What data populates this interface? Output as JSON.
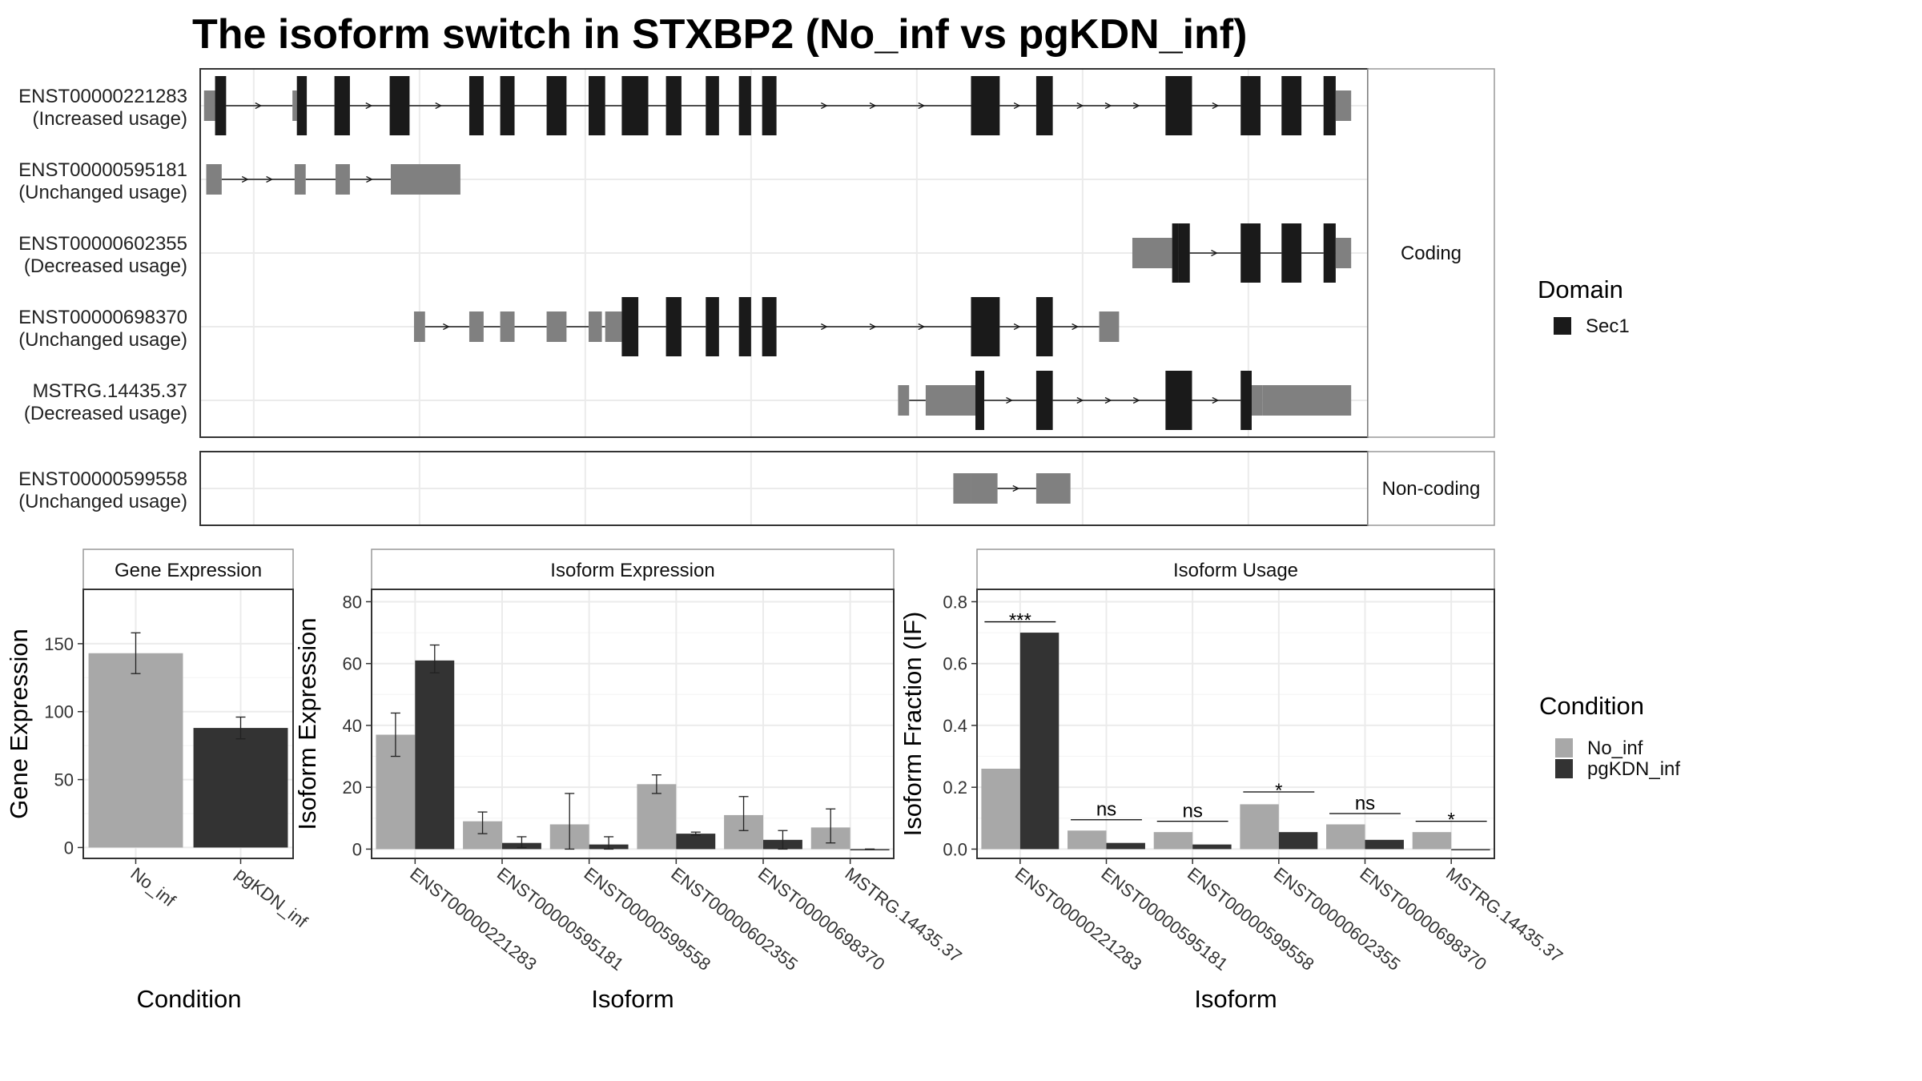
{
  "title": "The isoform switch in STXBP2 (No_inf vs pgKDN_inf)",
  "colors": {
    "cds": "#1a1a1a",
    "utr": "#808080",
    "no_inf": "#a8a8a8",
    "pgkdn": "#333333"
  },
  "structure": {
    "x_range": [
      0,
      1000
    ],
    "grid_x": [
      47,
      197,
      347,
      497,
      647,
      797,
      947
    ],
    "panels": [
      {
        "label": "Coding",
        "transcripts": [
          {
            "id": "ENST00000221283",
            "usage": "(Increased usage)",
            "exons": [
              [
                2,
                12,
                "u"
              ],
              [
                12,
                22,
                "c"
              ],
              [
                82,
                86,
                "u"
              ],
              [
                86,
                95,
                "c"
              ],
              [
                120,
                134,
                "c"
              ],
              [
                170,
                188,
                "c"
              ],
              [
                242,
                255,
                "c"
              ],
              [
                270,
                283,
                "c"
              ],
              [
                312,
                330,
                "c"
              ],
              [
                350,
                365,
                "c"
              ],
              [
                380,
                404,
                "c"
              ],
              [
                420,
                434,
                "c"
              ],
              [
                456,
                468,
                "c"
              ],
              [
                486,
                497,
                "c"
              ],
              [
                507,
                520,
                "c"
              ],
              [
                696,
                722,
                "c"
              ],
              [
                755,
                770,
                "c"
              ],
              [
                872,
                896,
                "c"
              ],
              [
                940,
                958,
                "c"
              ],
              [
                977,
                995,
                "c"
              ],
              [
                1015,
                1026,
                "c"
              ],
              [
                1026,
                1040,
                "u"
              ]
            ]
          },
          {
            "id": "ENST00000595181",
            "usage": "(Unchanged usage)",
            "exons": [
              [
                4,
                18,
                "u"
              ],
              [
                84,
                94,
                "u"
              ],
              [
                121,
                134,
                "u"
              ],
              [
                171,
                234,
                "u"
              ]
            ]
          },
          {
            "id": "ENST00000602355",
            "usage": "(Decreased usage)",
            "exons": [
              [
                842,
                878,
                "u"
              ],
              [
                878,
                884,
                "c"
              ],
              [
                884,
                894,
                "c"
              ],
              [
                940,
                958,
                "c"
              ],
              [
                977,
                995,
                "c"
              ],
              [
                1015,
                1026,
                "c"
              ],
              [
                1026,
                1040,
                "u"
              ]
            ]
          },
          {
            "id": "ENST00000698370",
            "usage": "(Unchanged usage)",
            "exons": [
              [
                192,
                202,
                "u"
              ],
              [
                242,
                255,
                "u"
              ],
              [
                270,
                283,
                "u"
              ],
              [
                312,
                330,
                "u"
              ],
              [
                350,
                362,
                "u"
              ],
              [
                365,
                380,
                "u"
              ],
              [
                380,
                395,
                "c"
              ],
              [
                420,
                434,
                "c"
              ],
              [
                456,
                468,
                "c"
              ],
              [
                486,
                497,
                "c"
              ],
              [
                507,
                520,
                "c"
              ],
              [
                696,
                722,
                "c"
              ],
              [
                755,
                770,
                "c"
              ],
              [
                812,
                830,
                "u"
              ]
            ]
          },
          {
            "id": "MSTRG.14435.37",
            "usage": "(Decreased usage)",
            "exons": [
              [
                630,
                640,
                "u"
              ],
              [
                655,
                700,
                "u"
              ],
              [
                700,
                708,
                "c"
              ],
              [
                755,
                770,
                "c"
              ],
              [
                872,
                896,
                "c"
              ],
              [
                940,
                950,
                "c"
              ],
              [
                950,
                960,
                "u"
              ],
              [
                960,
                1040,
                "u"
              ]
            ]
          }
        ]
      },
      {
        "label": "Non-coding",
        "transcripts": [
          {
            "id": "ENST00000599558",
            "usage": "(Unchanged usage)",
            "exons": [
              [
                680,
                696,
                "u"
              ],
              [
                696,
                720,
                "u"
              ],
              [
                755,
                786,
                "u"
              ]
            ]
          }
        ]
      }
    ]
  },
  "legend_domain": {
    "title": "Domain",
    "items": [
      "Sec1"
    ]
  },
  "legend_condition": {
    "title": "Condition",
    "items": [
      "No_inf",
      "pgKDN_inf"
    ]
  },
  "chart_data": [
    {
      "type": "bar",
      "title": "Gene Expression",
      "xlabel": "Condition",
      "ylabel": "Gene Expression",
      "categories": [
        "No_inf",
        "pgKDN_inf"
      ],
      "values": [
        143,
        88
      ],
      "errors": [
        [
          128,
          158
        ],
        [
          80,
          96
        ]
      ],
      "ylim": [
        -8,
        190
      ],
      "yticks": [
        0,
        50,
        100,
        150
      ]
    },
    {
      "type": "bar",
      "title": "Isoform Expression",
      "xlabel": "Isoform",
      "ylabel": "Isoform Expression",
      "categories": [
        "ENST00000221283",
        "ENST00000595181",
        "ENST00000599558",
        "ENST00000602355",
        "ENST00000698370",
        "MSTRG.14435.37"
      ],
      "series": [
        {
          "name": "No_inf",
          "values": [
            37,
            9,
            8,
            21,
            11,
            7
          ],
          "errors": [
            [
              30,
              44
            ],
            [
              5,
              12
            ],
            [
              0,
              18
            ],
            [
              18,
              24
            ],
            [
              6,
              17
            ],
            [
              2,
              13
            ]
          ]
        },
        {
          "name": "pgKDN_inf",
          "values": [
            61,
            2,
            1.5,
            5,
            3,
            0
          ],
          "errors": [
            [
              57,
              66
            ],
            [
              0.5,
              4
            ],
            [
              0,
              4
            ],
            [
              4.5,
              5.5
            ],
            [
              0,
              6
            ],
            [
              0,
              0
            ]
          ]
        }
      ],
      "ylim": [
        -3,
        84
      ],
      "yticks": [
        0,
        20,
        40,
        60,
        80
      ]
    },
    {
      "type": "bar",
      "title": "Isoform Usage",
      "xlabel": "Isoform",
      "ylabel": "Isoform Fraction (IF)",
      "categories": [
        "ENST00000221283",
        "ENST00000595181",
        "ENST00000599558",
        "ENST00000602355",
        "ENST00000698370",
        "MSTRG.14435.37"
      ],
      "series": [
        {
          "name": "No_inf",
          "values": [
            0.26,
            0.06,
            0.055,
            0.145,
            0.08,
            0.055
          ]
        },
        {
          "name": "pgKDN_inf",
          "values": [
            0.7,
            0.02,
            0.015,
            0.055,
            0.03,
            0.0
          ]
        }
      ],
      "significance": [
        "***",
        "ns",
        "ns",
        "*",
        "ns",
        "*"
      ],
      "sig_y": [
        0.735,
        0.095,
        0.09,
        0.185,
        0.115,
        0.09
      ],
      "ylim": [
        -0.03,
        0.84
      ],
      "yticks": [
        0.0,
        0.2,
        0.4,
        0.6,
        0.8
      ],
      "ytick_labels": [
        "0.0",
        "0.2",
        "0.4",
        "0.6",
        "0.8"
      ]
    }
  ]
}
